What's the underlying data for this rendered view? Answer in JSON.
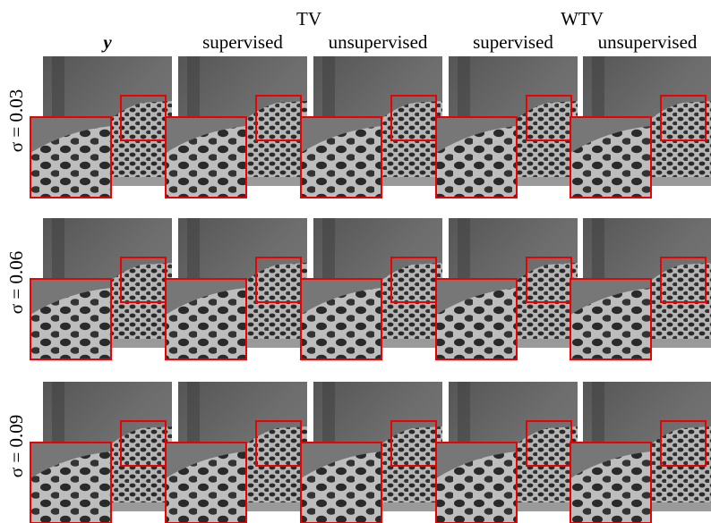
{
  "header": {
    "groups": [
      "TV",
      "WTV"
    ],
    "columns": [
      "y",
      "supervised",
      "unsupervised",
      "supervised",
      "unsupervised"
    ]
  },
  "rows": [
    "σ = 0.03",
    "σ = 0.06",
    "σ = 0.09"
  ]
}
